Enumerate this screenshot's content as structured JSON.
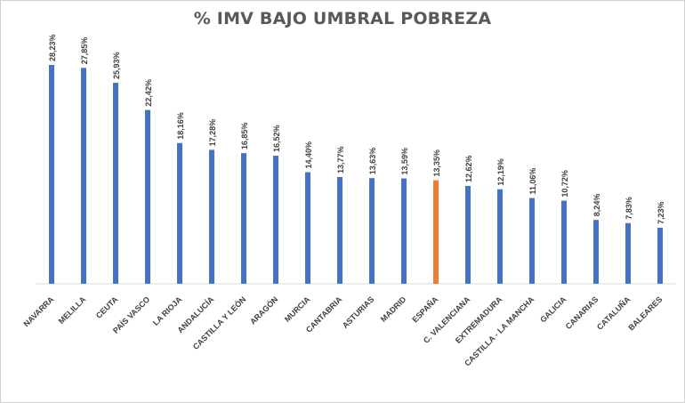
{
  "chart_data": {
    "type": "bar",
    "title": "% IMV BAJO UMBRAL POBREZA",
    "categories": [
      "NAVARRA",
      "MELILLA",
      "CEUTA",
      "PAÍS VASCO",
      "LA RIOJA",
      "ANDALUCÍA",
      "CASTILLA Y LEÓN",
      "ARAGÓN",
      "MURCIA",
      "CANTABRIA",
      "ASTURIAS",
      "MADRID",
      "ESPAÑA",
      "C. VALENCIANA",
      "EXTREMADURA",
      "CASTILLA    - LA MANCHA",
      "GALICIA",
      "CANARIAS",
      "CATALUÑA",
      "BALEARES"
    ],
    "values": [
      28.23,
      27.85,
      25.93,
      22.42,
      18.16,
      17.28,
      16.85,
      16.52,
      14.4,
      13.77,
      13.63,
      13.59,
      13.35,
      12.62,
      12.19,
      11.06,
      10.72,
      8.24,
      7.83,
      7.23
    ],
    "data_labels": [
      "28,23%",
      "27,85%",
      "25,93%",
      "22,42%",
      "18,16%",
      "17,28%",
      "16,85%",
      "16,52%",
      "14,40%",
      "13,77%",
      "13,63%",
      "13,59%",
      "13,35%",
      "12,62%",
      "12,19%",
      "11,06%",
      "10,72%",
      "8,24%",
      "7,83%",
      "7,23%"
    ],
    "highlight_category": "ESPAÑA",
    "colors": {
      "bar": "#4472c4",
      "highlight": "#ed7d31",
      "axis": "#d9d9d9",
      "text": "#404040"
    },
    "ylim": [
      0,
      28.23
    ],
    "grid": false,
    "legend": "none",
    "xlabel": "",
    "ylabel": ""
  }
}
